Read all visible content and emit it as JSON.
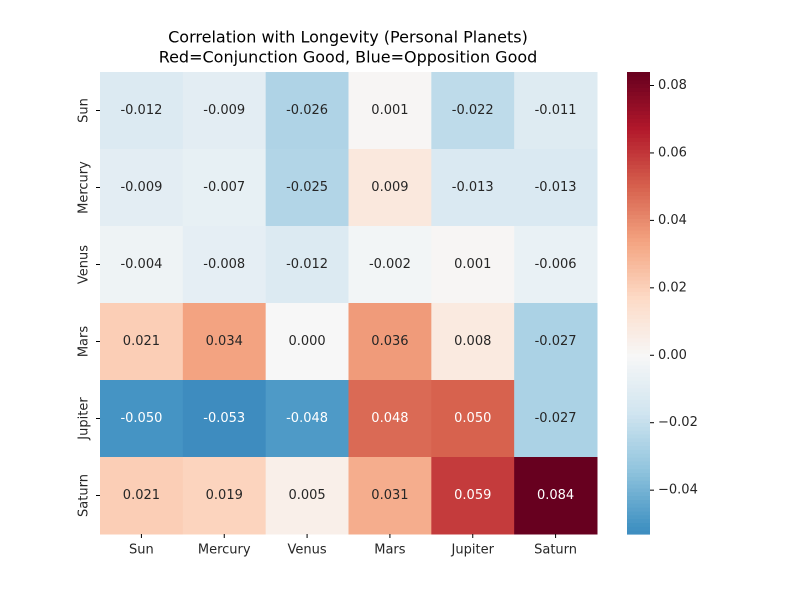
{
  "chart_data": {
    "type": "heatmap",
    "title": "Correlation with Longevity (Personal Planets)",
    "subtitle": "Red=Conjunction Good, Blue=Opposition Good",
    "x_categories": [
      "Sun",
      "Mercury",
      "Venus",
      "Mars",
      "Jupiter",
      "Saturn"
    ],
    "y_categories": [
      "Sun",
      "Mercury",
      "Venus",
      "Mars",
      "Jupiter",
      "Saturn"
    ],
    "values": [
      [
        -0.012,
        -0.009,
        -0.026,
        0.001,
        -0.022,
        -0.011
      ],
      [
        -0.009,
        -0.007,
        -0.025,
        0.009,
        -0.013,
        -0.013
      ],
      [
        -0.004,
        -0.008,
        -0.012,
        -0.002,
        0.001,
        -0.006
      ],
      [
        0.021,
        0.034,
        0.0,
        0.036,
        0.008,
        -0.027
      ],
      [
        -0.05,
        -0.053,
        -0.048,
        0.048,
        0.05,
        -0.027
      ],
      [
        0.021,
        0.019,
        0.005,
        0.031,
        0.059,
        0.084
      ]
    ],
    "value_labels": [
      [
        "-0.012",
        "-0.009",
        "-0.026",
        "0.001",
        "-0.022",
        "-0.011"
      ],
      [
        "-0.009",
        "-0.007",
        "-0.025",
        "0.009",
        "-0.013",
        "-0.013"
      ],
      [
        "-0.004",
        "-0.008",
        "-0.012",
        "-0.002",
        "0.001",
        "-0.006"
      ],
      [
        "0.021",
        "0.034",
        "0.000",
        "0.036",
        "0.008",
        "-0.027"
      ],
      [
        "-0.050",
        "-0.053",
        "-0.048",
        "0.048",
        "0.050",
        "-0.027"
      ],
      [
        "0.021",
        "0.019",
        "0.005",
        "0.031",
        "0.059",
        "0.084"
      ]
    ],
    "colormap": [
      "#053061",
      "#2166ac",
      "#4393c3",
      "#92c5de",
      "#d1e5f0",
      "#f7f7f7",
      "#fddbc7",
      "#f4a582",
      "#d6604d",
      "#b2182b",
      "#67001f"
    ],
    "center": 0,
    "clim": [
      -0.053,
      0.084
    ],
    "cticks": [
      {
        "value": -0.04,
        "label": "−0.04"
      },
      {
        "value": -0.02,
        "label": "−0.02"
      },
      {
        "value": 0,
        "label": "0.00"
      },
      0.02,
      0.04,
      0.06,
      0.08
    ]
  }
}
